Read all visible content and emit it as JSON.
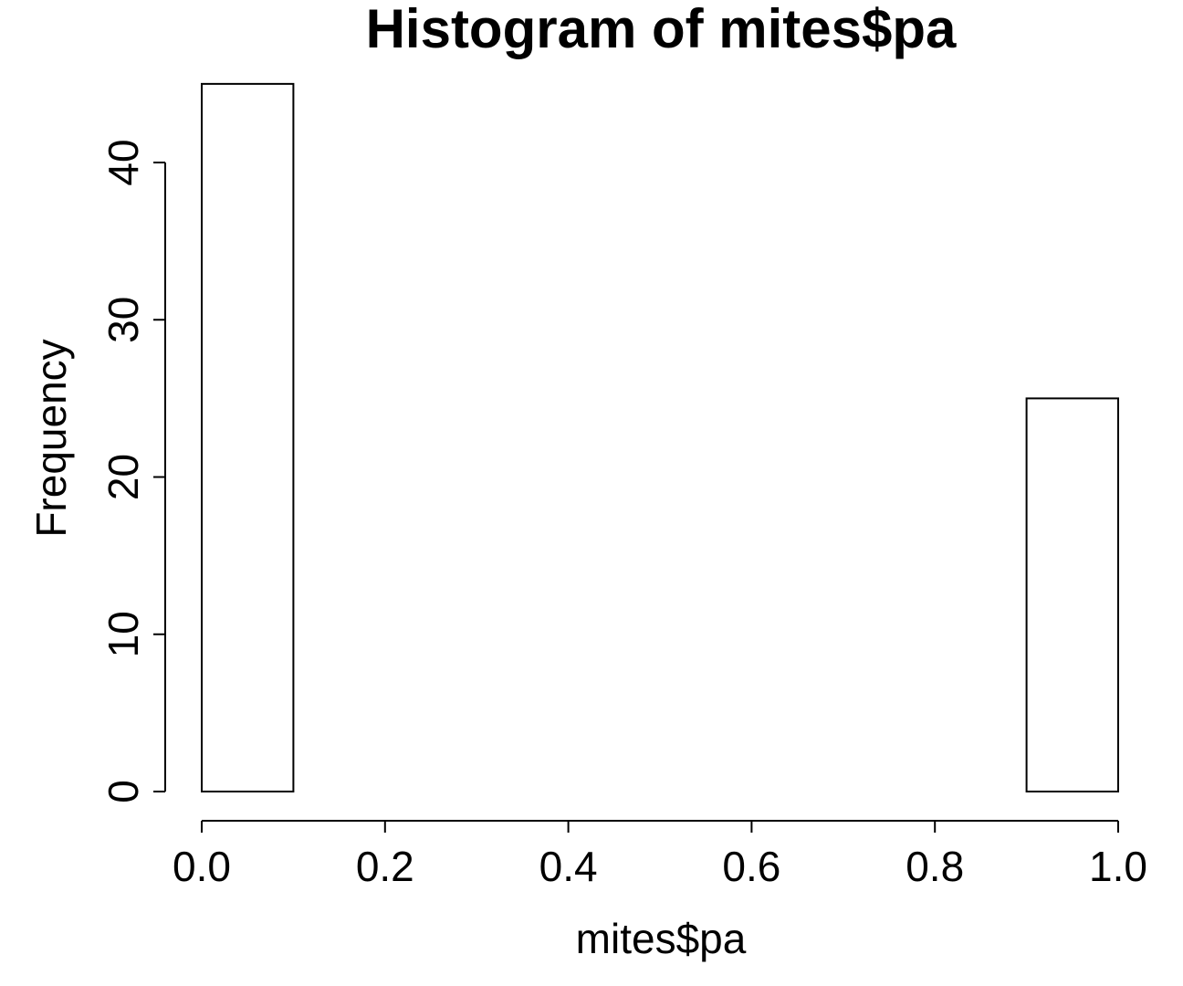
{
  "chart_data": {
    "type": "bar",
    "subtype": "histogram",
    "title": "Histogram of mites$pa",
    "xlabel": "mites$pa",
    "ylabel": "Frequency",
    "bins": [
      {
        "start": 0.0,
        "end": 0.1,
        "count": 45
      },
      {
        "start": 0.1,
        "end": 0.2,
        "count": 0
      },
      {
        "start": 0.2,
        "end": 0.3,
        "count": 0
      },
      {
        "start": 0.3,
        "end": 0.4,
        "count": 0
      },
      {
        "start": 0.4,
        "end": 0.5,
        "count": 0
      },
      {
        "start": 0.5,
        "end": 0.6,
        "count": 0
      },
      {
        "start": 0.6,
        "end": 0.7,
        "count": 0
      },
      {
        "start": 0.7,
        "end": 0.8,
        "count": 0
      },
      {
        "start": 0.8,
        "end": 0.9,
        "count": 0
      },
      {
        "start": 0.9,
        "end": 1.0,
        "count": 25
      }
    ],
    "xlim": [
      0.0,
      1.0
    ],
    "ylim": [
      0,
      45
    ],
    "xticks": [
      0.0,
      0.2,
      0.4,
      0.6,
      0.8,
      1.0
    ],
    "xtick_labels": [
      "0.0",
      "0.2",
      "0.4",
      "0.6",
      "0.8",
      "1.0"
    ],
    "yticks": [
      0,
      10,
      20,
      30,
      40
    ],
    "ytick_labels": [
      "0",
      "10",
      "20",
      "30",
      "40"
    ],
    "grid": false,
    "bar_fill": "#ffffff",
    "bar_stroke": "#000000"
  }
}
